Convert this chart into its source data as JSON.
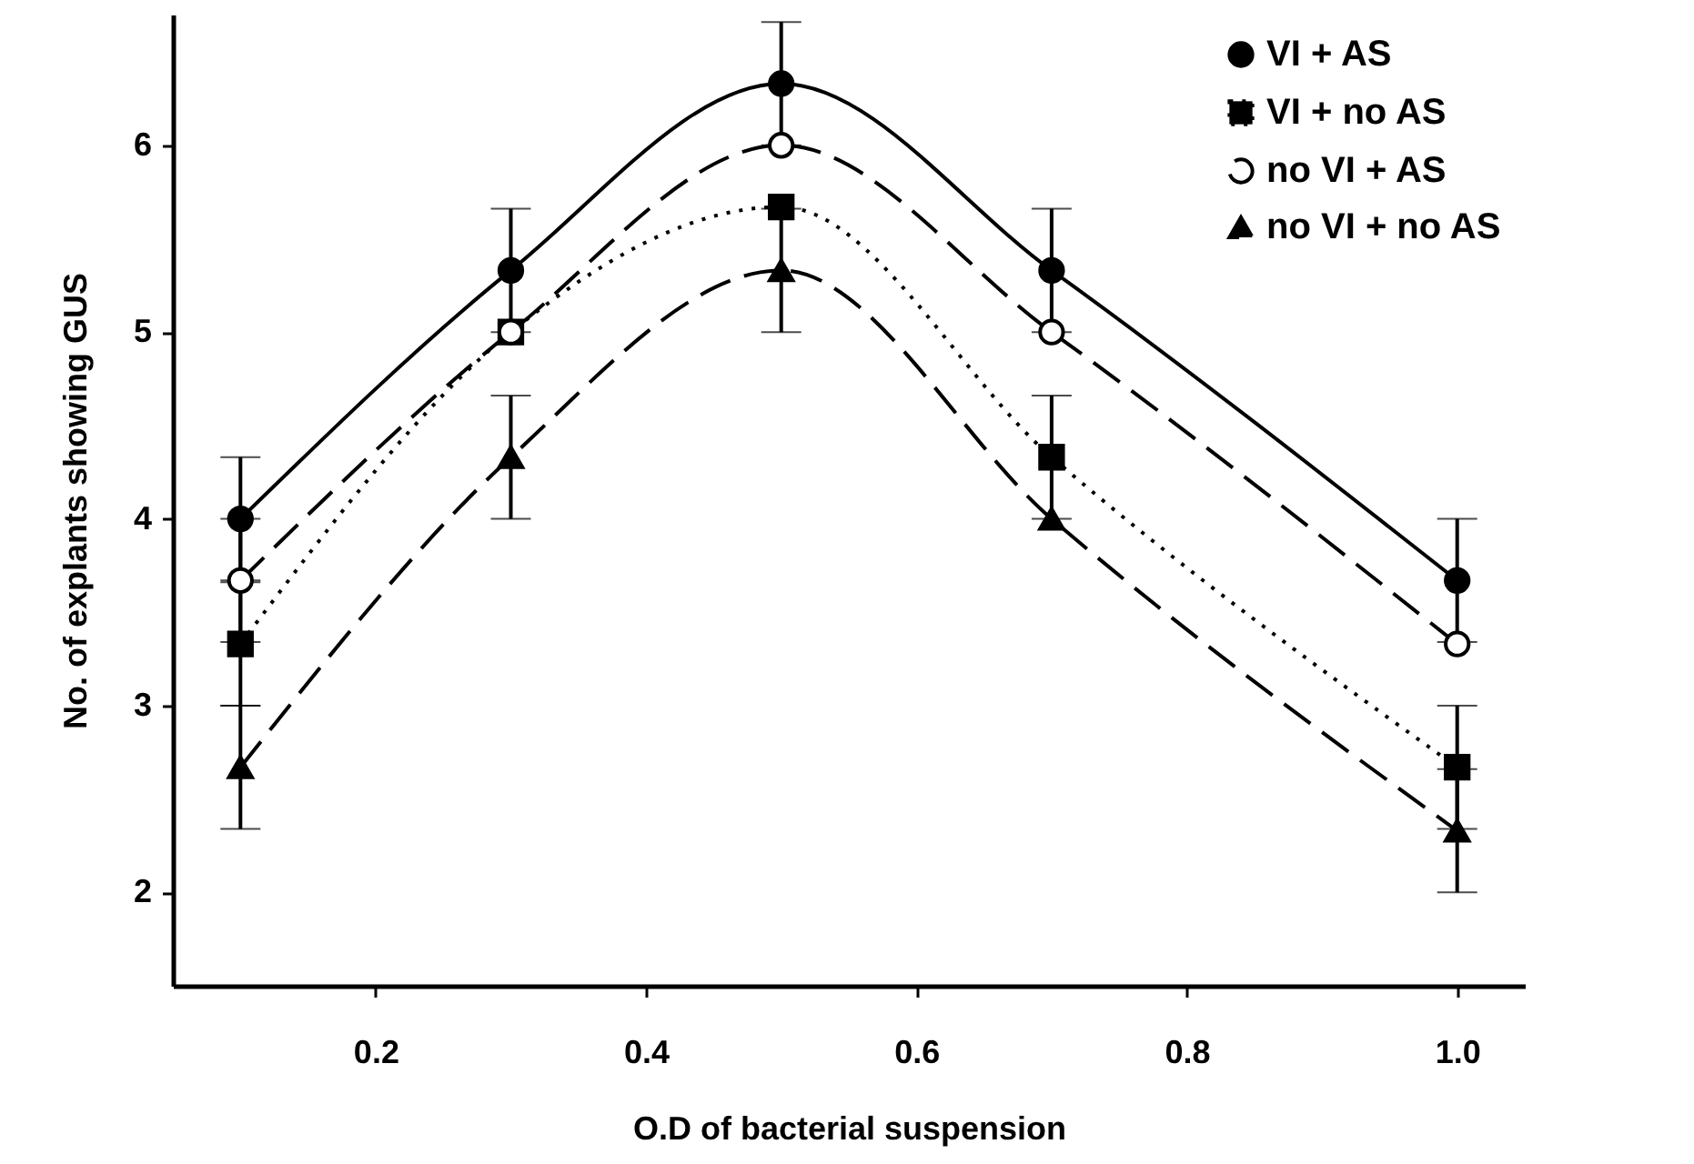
{
  "chart_data": {
    "type": "line",
    "xlabel": "O.D of bacterial suspension",
    "ylabel": "No. of explants showing GUS",
    "x": [
      0.1,
      0.3,
      0.5,
      0.7,
      1.0
    ],
    "xlim": [
      0.05,
      1.05
    ],
    "xticks": [
      0.2,
      0.4,
      0.6,
      {
        "value": 0.8,
        "label": "0.8"
      },
      {
        "value": 1.0,
        "label": "1.0"
      }
    ],
    "ylim": [
      1.5,
      6.7
    ],
    "yticks": [
      2,
      3,
      4,
      5,
      6
    ],
    "grid": false,
    "legend": "top right",
    "series": [
      {
        "name": "VI + AS",
        "color": "#000000",
        "marker": "circle",
        "line_style": "solid",
        "values": [
          4,
          5.33,
          6.33,
          5.33,
          3.67
        ],
        "errors": [
          0.33,
          0.33,
          0.33,
          0.33,
          0.33
        ]
      },
      {
        "name": "VI + no AS",
        "color": "#000000",
        "marker": "square",
        "line_style": "dotted",
        "values": [
          3.33,
          5,
          5.67,
          4.33,
          2.67
        ],
        "errors": [
          0.33,
          null,
          null,
          0.33,
          0.33
        ]
      },
      {
        "name": "no VI + AS",
        "color": "#000000",
        "marker": "circle-open",
        "line_style": "dashed",
        "values": [
          3.67,
          5,
          6,
          5,
          3.33
        ],
        "errors": [
          0.33,
          null,
          null,
          null,
          null
        ]
      },
      {
        "name": "no VI + no AS",
        "color": "#000000",
        "marker": "triangle",
        "line_style": "dashed",
        "values": [
          2.67,
          4.33,
          5.33,
          4,
          2.33
        ],
        "errors": [
          0.33,
          0.33,
          0.33,
          null,
          0.33
        ]
      }
    ]
  }
}
